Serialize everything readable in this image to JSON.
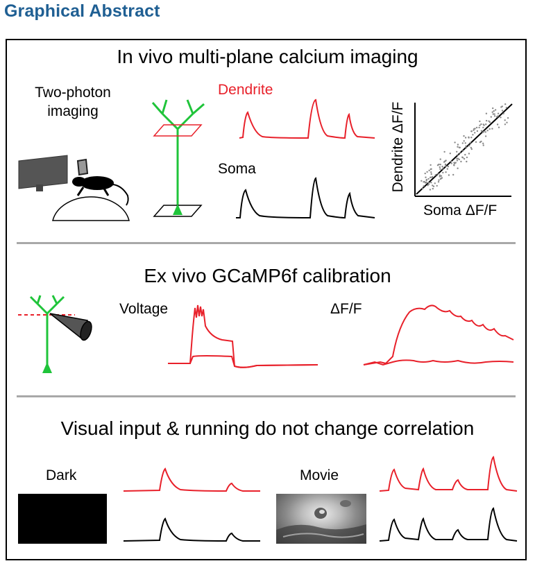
{
  "header": {
    "title": "Graphical Abstract"
  },
  "section1": {
    "title": "In vivo multi-plane calcium imaging",
    "imaging_label": "Two-photon\nimaging",
    "dendrite_label": "Dendrite",
    "soma_label": "Soma",
    "scatter_ylabel": "Dendrite ΔF/F",
    "scatter_xlabel": "Soma ΔF/F"
  },
  "section2": {
    "title": "Ex vivo GCaMP6f calibration",
    "voltage_label": "Voltage",
    "dff_label": "ΔF/F"
  },
  "section3": {
    "title": "Visual input & running do not change correlation",
    "dark_label": "Dark",
    "movie_label": "Movie"
  },
  "colors": {
    "header": "#1f5f93",
    "dendrite": "#e8202a",
    "neuron": "#1fc43a",
    "soma": "#000000",
    "divider": "#a8a8a8"
  }
}
